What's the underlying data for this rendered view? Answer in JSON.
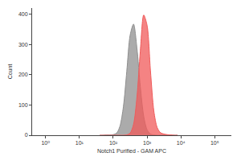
{
  "chart_data": {
    "type": "area",
    "x_label": "Notch1 Purified - GAM APC",
    "y_label": "Count",
    "x": [
      40,
      50,
      63,
      79,
      100,
      126,
      158,
      200,
      251,
      316,
      398,
      501,
      631,
      794,
      1000,
      1259,
      1585,
      1995,
      2512,
      3162,
      3981,
      5012,
      6310,
      7943
    ],
    "series": [
      {
        "color": "#8f8f8f",
        "values": [
          0,
          0,
          1,
          1,
          2,
          7,
          30,
          95,
          211,
          331,
          367,
          288,
          160,
          63,
          18,
          4,
          1,
          0,
          0,
          0,
          0,
          0,
          0,
          0
        ]
      },
      {
        "color": "#f05a5a",
        "values": [
          0,
          0,
          0,
          0,
          0,
          0,
          0,
          0,
          1,
          7,
          36,
          125,
          278,
          397,
          363,
          213,
          80,
          25,
          8,
          4,
          2,
          1,
          0,
          0
        ]
      }
    ],
    "log": "x",
    "xlim": [
      0.4,
      310000
    ],
    "xticks": [
      {
        "value": 1,
        "label": "10⁰"
      },
      {
        "value": 10,
        "label": "10¹"
      },
      {
        "value": 100,
        "label": "10²"
      },
      {
        "value": 1000,
        "label": "10³"
      },
      {
        "value": 10000,
        "label": "10⁴"
      },
      {
        "value": 100000,
        "label": "10⁵"
      }
    ],
    "ylim": [
      0,
      420
    ],
    "yticks": [
      0,
      100,
      200,
      300,
      400
    ],
    "grid": false
  }
}
